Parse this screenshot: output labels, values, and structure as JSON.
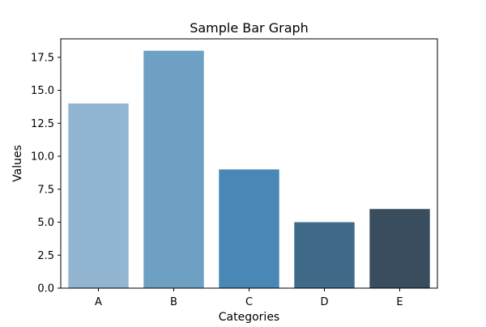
{
  "chart_data": {
    "type": "bar",
    "title": "Sample Bar Graph",
    "xlabel": "Categories",
    "ylabel": "Values",
    "categories": [
      "A",
      "B",
      "C",
      "D",
      "E"
    ],
    "values": [
      14,
      18,
      9,
      5,
      6
    ],
    "ylim": [
      0,
      18.9
    ],
    "yticks": [
      0.0,
      2.5,
      5.0,
      7.5,
      10.0,
      12.5,
      15.0,
      17.5
    ],
    "ytick_labels": [
      "0.0",
      "2.5",
      "5.0",
      "7.5",
      "10.0",
      "12.5",
      "15.0",
      "17.5"
    ],
    "colors": [
      "#92b6d1",
      "#6da0c2",
      "#4887b6",
      "#3f6a8a",
      "#3a4d5e"
    ],
    "grid": false,
    "legend": "none"
  }
}
